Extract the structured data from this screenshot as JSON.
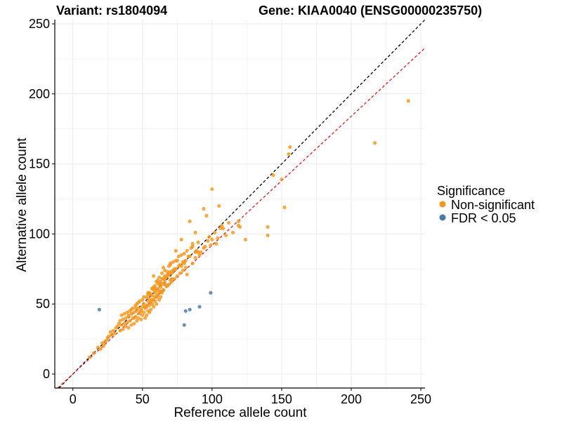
{
  "chart_data": {
    "type": "scatter",
    "title_left": "Variant: rs1804094",
    "title_right": "Gene: KIAA0040 (ENSG00000235750)",
    "xlabel": "Reference allele count",
    "ylabel": "Alternative allele count",
    "xlim": [
      -13,
      253
    ],
    "ylim": [
      -10,
      253
    ],
    "x_ticks": [
      0,
      50,
      100,
      150,
      200,
      250
    ],
    "y_ticks": [
      0,
      50,
      100,
      150,
      200,
      250
    ],
    "grid": true,
    "reference_lines": [
      {
        "name": "identity",
        "slope": 1.0,
        "intercept": 0,
        "color": "#000000",
        "dash": true
      },
      {
        "name": "fit",
        "slope": 0.92,
        "intercept": 0,
        "color": "#e41a1c",
        "dash": true
      }
    ],
    "legend": {
      "title": "Significance",
      "position": "right",
      "entries": [
        {
          "label": "Non-significant",
          "color": "#f5961d"
        },
        {
          "label": "FDR < 0.05",
          "color": "#4b78a8"
        }
      ]
    },
    "series": [
      {
        "name": "Non-significant",
        "color": "#f5961d",
        "x": [
          241,
          217,
          156,
          155,
          152,
          150,
          144,
          140,
          140,
          124,
          119,
          119,
          108,
          105,
          100,
          96,
          94,
          90,
          88,
          86,
          84,
          80,
          78,
          76,
          74,
          72,
          70,
          70,
          69,
          68,
          68,
          67,
          66,
          66,
          65,
          65,
          64,
          64,
          64,
          63,
          63,
          63,
          62,
          62,
          62,
          61,
          61,
          61,
          60,
          60,
          60,
          59,
          59,
          59,
          58,
          58,
          58,
          57,
          57,
          57,
          56,
          56,
          56,
          55,
          55,
          55,
          54,
          54,
          54,
          53,
          53,
          53,
          52,
          52,
          51,
          51,
          50,
          50,
          49,
          49,
          48,
          48,
          47,
          47,
          46,
          46,
          45,
          45,
          44,
          44,
          43,
          43,
          42,
          42,
          41,
          41,
          40,
          40,
          39,
          39,
          38,
          38,
          37,
          37,
          36,
          36,
          35,
          35,
          34,
          34,
          33,
          32,
          31,
          30,
          29,
          28,
          27,
          26,
          25,
          24,
          23,
          22,
          21,
          20,
          18,
          15,
          12,
          70,
          72,
          75,
          78,
          80,
          82,
          85,
          88,
          90,
          92,
          95,
          98,
          100,
          103,
          106,
          110,
          112,
          115,
          120,
          66,
          68,
          71,
          74,
          77,
          79,
          81,
          83,
          86,
          89,
          91,
          94,
          97,
          99,
          102,
          104,
          107,
          58,
          60,
          62,
          64,
          66,
          68,
          70,
          72,
          74,
          76,
          78,
          80,
          82,
          84,
          86,
          88,
          55,
          57,
          59,
          61,
          63,
          65,
          67,
          69,
          71,
          73,
          75,
          77,
          79,
          81,
          45,
          47,
          49,
          51,
          53,
          55,
          57,
          59,
          61,
          63,
          65,
          67,
          69,
          71,
          73,
          40,
          42,
          44,
          46,
          48,
          50,
          52,
          54,
          56,
          58,
          60,
          62,
          64,
          66
        ],
        "y": [
          195,
          165,
          162,
          157,
          119,
          139,
          142,
          99,
          105,
          96,
          109,
          106,
          104,
          120,
          132,
          113,
          118,
          87,
          101,
          93,
          109,
          79,
          96,
          84,
          88,
          80,
          73,
          67,
          77,
          73,
          63,
          69,
          65,
          70,
          60,
          76,
          58,
          68,
          72,
          55,
          62,
          66,
          53,
          59,
          64,
          57,
          61,
          67,
          50,
          55,
          60,
          52,
          58,
          63,
          48,
          53,
          70,
          50,
          56,
          61,
          46,
          51,
          57,
          44,
          49,
          54,
          45,
          52,
          58,
          42,
          48,
          55,
          40,
          47,
          44,
          50,
          42,
          48,
          39,
          46,
          43,
          52,
          40,
          47,
          38,
          45,
          41,
          49,
          36,
          44,
          40,
          47,
          35,
          43,
          38,
          45,
          33,
          41,
          37,
          44,
          34,
          40,
          36,
          43,
          32,
          39,
          35,
          42,
          31,
          38,
          36,
          34,
          33,
          29,
          31,
          28,
          30,
          27,
          26,
          24,
          23,
          20,
          22,
          18,
          19,
          15,
          12,
          79,
          74,
          81,
          77,
          86,
          71,
          90,
          83,
          94,
          87,
          91,
          98,
          96,
          93,
          104,
          99,
          108,
          101,
          105,
          64,
          71,
          68,
          75,
          72,
          80,
          76,
          84,
          79,
          88,
          85,
          90,
          95,
          92,
          101,
          97,
          106,
          62,
          66,
          69,
          64,
          74,
          70,
          78,
          73,
          81,
          77,
          85,
          80,
          88,
          84,
          91,
          87,
          57,
          61,
          55,
          65,
          59,
          68,
          63,
          71,
          66,
          75,
          70,
          78,
          74,
          81,
          47,
          51,
          45,
          55,
          49,
          58,
          53,
          61,
          56,
          65,
          60,
          69,
          64,
          72,
          68,
          42,
          46,
          40,
          50,
          44,
          53,
          48,
          57,
          52,
          60,
          55,
          64,
          59,
          67
        ]
      },
      {
        "name": "FDR < 0.05",
        "color": "#4b78a8",
        "x": [
          19,
          80,
          81,
          84,
          91,
          99
        ],
        "y": [
          46,
          35,
          45,
          46,
          48,
          58
        ]
      }
    ]
  }
}
